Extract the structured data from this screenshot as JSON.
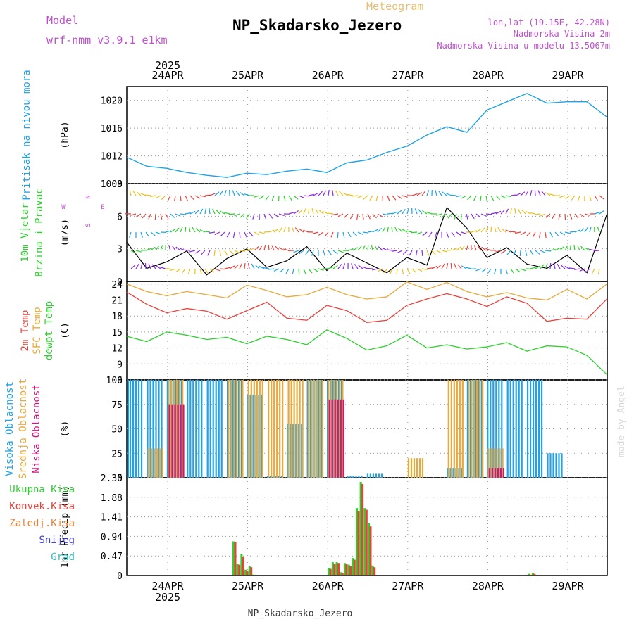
{
  "header": {
    "model_label": "Model",
    "model_name": "wrf-nmm_v3.9.1 e1km",
    "meteogram_label": "Meteogram",
    "station_title": "NP_Skadarsko_Jezero",
    "lonlat": "lon,lat (19.15E, 42.28N)",
    "altitude": "Nadmorska Visina 2m",
    "model_altitude": "Nadmorska Visina u modelu 13.5067m",
    "footer_station": "NP_Skadarsko_Jezero",
    "credit": "made by Angel"
  },
  "colors": {
    "pressure": "#1fa3e8",
    "temp2m": "#e8413a",
    "sfc_temp": "#e8a83a",
    "dewpoint": "#2ecf2e",
    "cloud_high": "#1fa3e8",
    "cloud_mid": "#e8a83a",
    "cloud_low": "#d4147a",
    "precip_total": "#2ecf2e",
    "precip_conv": "#e8413a",
    "magenta_text": "#c050d0"
  },
  "time_axis": {
    "year_label": "2025",
    "dates": [
      "24APR",
      "25APR",
      "26APR",
      "27APR",
      "28APR",
      "29APR"
    ]
  },
  "chart_data": [
    {
      "type": "line",
      "panel": "pressure",
      "title": "Pritisak na nivou mora",
      "ylabel": "(hPa)",
      "ylim": [
        1008,
        1022
      ],
      "yticks": [
        "1008",
        "1012",
        "1016",
        "1020"
      ],
      "x_days": [
        0,
        0.25,
        0.5,
        0.75,
        1,
        1.25,
        1.5,
        1.75,
        2,
        2.25,
        2.5,
        2.75,
        3,
        3.25,
        3.5,
        3.75,
        4,
        4.25,
        4.5,
        4.75,
        5,
        5.25,
        5.5,
        5.75,
        6
      ],
      "series": [
        {
          "name": "Pritisak na nivou mora",
          "values": [
            1011.8,
            1010.5,
            1010.2,
            1009.6,
            1009.2,
            1008.9,
            1009.5,
            1009.3,
            1009.8,
            1010.1,
            1009.6,
            1011.0,
            1011.4,
            1012.5,
            1013.4,
            1015.0,
            1016.2,
            1015.4,
            1018.6,
            1019.8,
            1021.0,
            1019.6,
            1019.8,
            1019.8,
            1017.6
          ]
        }
      ]
    },
    {
      "type": "line",
      "panel": "wind",
      "title": "10m Vjetar Brzina i Pravac",
      "ylabel": "(m/s)",
      "ylim": [
        0,
        9
      ],
      "yticks": [
        "0",
        "3",
        "6",
        "9"
      ],
      "compass": [
        "N",
        "E",
        "W",
        "S"
      ],
      "x_days": [
        0,
        0.25,
        0.5,
        0.75,
        1,
        1.25,
        1.5,
        1.75,
        2,
        2.25,
        2.5,
        2.75,
        3,
        3.25,
        3.5,
        3.75,
        4,
        4.25,
        4.5,
        4.75,
        5,
        5.25,
        5.5,
        5.75,
        6
      ],
      "series": [
        {
          "name": "wind speed",
          "values": [
            3.6,
            1.2,
            1.8,
            2.8,
            0.6,
            2.1,
            3.0,
            1.3,
            1.9,
            3.2,
            1.0,
            2.6,
            1.7,
            0.8,
            2.2,
            1.5,
            6.8,
            4.9,
            2.2,
            3.1,
            1.6,
            1.2,
            2.4,
            0.8,
            6.2
          ]
        }
      ]
    },
    {
      "type": "line",
      "panel": "temperature",
      "series_titles": [
        "2m Temp",
        "SFC Temp",
        "dewpt Temp"
      ],
      "ylabel": "(C)",
      "ylim": [
        6,
        24.5
      ],
      "yticks": [
        "6",
        "9",
        "12",
        "15",
        "18",
        "21",
        "24"
      ],
      "x_days": [
        0,
        0.25,
        0.5,
        0.75,
        1,
        1.25,
        1.5,
        1.75,
        2,
        2.25,
        2.5,
        2.75,
        3,
        3.25,
        3.5,
        3.75,
        4,
        4.25,
        4.5,
        4.75,
        5,
        5.25,
        5.5,
        5.75,
        6
      ],
      "series": [
        {
          "name": "2m Temp",
          "values": [
            22.5,
            20.2,
            18.6,
            19.4,
            18.9,
            17.4,
            19.0,
            20.6,
            17.6,
            17.2,
            20.0,
            19.0,
            16.8,
            17.2,
            20.0,
            21.2,
            22.2,
            21.2,
            19.8,
            21.6,
            20.4,
            17.0,
            17.6,
            17.4,
            21.2
          ]
        },
        {
          "name": "SFC Temp",
          "values": [
            24.0,
            22.6,
            21.8,
            22.6,
            22.0,
            21.4,
            23.8,
            22.8,
            21.6,
            22.0,
            23.4,
            22.0,
            21.2,
            21.6,
            24.4,
            23.0,
            24.3,
            22.6,
            21.6,
            22.4,
            21.4,
            21.0,
            23.0,
            21.2,
            24.0
          ]
        },
        {
          "name": "dewpt Temp",
          "values": [
            14.2,
            13.2,
            15.0,
            14.4,
            13.6,
            14.0,
            12.8,
            14.2,
            13.6,
            12.6,
            15.4,
            13.8,
            11.6,
            12.4,
            14.4,
            12.0,
            12.6,
            11.8,
            12.2,
            13.0,
            11.4,
            12.4,
            12.2,
            10.6,
            7.0
          ]
        }
      ]
    },
    {
      "type": "bar",
      "panel": "cloud",
      "series_titles": [
        "Visoka Oblacnost",
        "Srednja Oblacnost",
        "Niska Oblacnost"
      ],
      "ylabel": "(%)",
      "ylim": [
        0,
        100
      ],
      "yticks": [
        "0",
        "25",
        "50",
        "75",
        "100"
      ],
      "x_days": [
        0,
        0.25,
        0.5,
        0.75,
        1,
        1.25,
        1.5,
        1.75,
        2,
        2.25,
        2.5,
        2.75,
        3,
        3.25,
        3.5,
        3.75,
        4,
        4.25,
        4.5,
        4.75,
        5,
        5.25,
        5.5,
        5.75,
        6
      ],
      "series": [
        {
          "name": "Visoka Oblacnost",
          "values": [
            100,
            100,
            100,
            100,
            100,
            100,
            85,
            2,
            55,
            100,
            100,
            2,
            4,
            0,
            0,
            0,
            10,
            100,
            100,
            100,
            100,
            25,
            0,
            0,
            0
          ]
        },
        {
          "name": "Srednja Oblacnost",
          "values": [
            0,
            30,
            100,
            0,
            0,
            100,
            100,
            100,
            100,
            100,
            100,
            0,
            0,
            0,
            20,
            0,
            100,
            100,
            30,
            0,
            0,
            0,
            0,
            0,
            0
          ]
        },
        {
          "name": "Niska Oblacnost",
          "values": [
            0,
            0,
            75,
            0,
            0,
            0,
            0,
            0,
            0,
            0,
            80,
            0,
            0,
            0,
            0,
            0,
            0,
            0,
            10,
            0,
            0,
            0,
            0,
            0,
            0
          ]
        }
      ]
    },
    {
      "type": "bar",
      "panel": "precipitation",
      "legend": [
        "Ukupna Kisa",
        "Konvek.Kisa",
        "Zaledj.Kisa",
        "Snijeg",
        "Grad"
      ],
      "ylabel": "1hr Precip (mm)",
      "ylim": [
        0,
        2.35
      ],
      "yticks": [
        "0",
        "0.47",
        "0.94",
        "1.41",
        "1.88",
        "2.35"
      ],
      "x_days": [
        0.81,
        0.86,
        0.91,
        0.96,
        1.01,
        1.06,
        2.0,
        2.05,
        2.1,
        2.15,
        2.2,
        2.25,
        2.3,
        2.35,
        2.4,
        2.45,
        2.5,
        2.55,
        4.5,
        4.55
      ],
      "series": [
        {
          "name": "Ukupna Kisa",
          "values": [
            0.82,
            0.28,
            0.52,
            0.14,
            0.22,
            0.02,
            0.18,
            0.32,
            0.32,
            0.08,
            0.3,
            0.26,
            0.42,
            1.62,
            2.25,
            1.62,
            1.26,
            0.24,
            0.04,
            0.06
          ]
        },
        {
          "name": "Konvek.Kisa",
          "values": [
            0.8,
            0.26,
            0.45,
            0.12,
            0.2,
            0,
            0.16,
            0.28,
            0.3,
            0.06,
            0.28,
            0.22,
            0.38,
            1.55,
            2.2,
            1.58,
            1.18,
            0.2,
            0.02,
            0.04
          ]
        }
      ]
    }
  ]
}
